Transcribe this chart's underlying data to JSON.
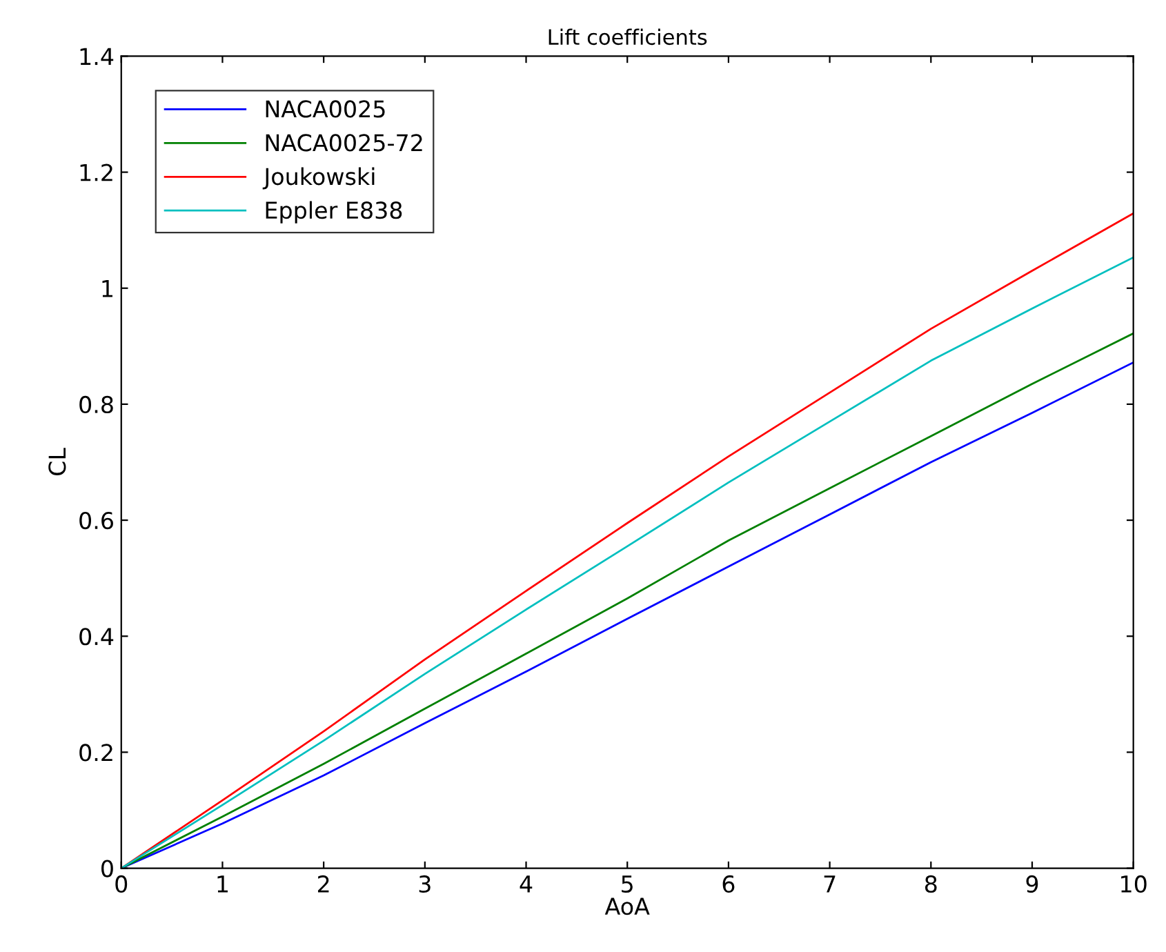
{
  "chart_data": {
    "type": "line",
    "title": "Lift coefficients",
    "xlabel": "AoA",
    "ylabel": "CL",
    "x": [
      0,
      1,
      2,
      3,
      4,
      5,
      6,
      7,
      8,
      9,
      10
    ],
    "series": [
      {
        "name": "NACA0025",
        "color": "#0000ff",
        "values": [
          0,
          0.077,
          0.16,
          0.25,
          0.339,
          0.43,
          0.52,
          0.61,
          0.7,
          0.785,
          0.872
        ]
      },
      {
        "name": "NACA0025-72",
        "color": "#008000",
        "values": [
          0,
          0.089,
          0.18,
          0.275,
          0.37,
          0.465,
          0.565,
          0.655,
          0.745,
          0.835,
          0.922
        ]
      },
      {
        "name": "Joukowski",
        "color": "#ff0000",
        "values": [
          0,
          0.117,
          0.236,
          0.36,
          0.478,
          0.595,
          0.71,
          0.82,
          0.93,
          1.03,
          1.129
        ]
      },
      {
        "name": "Eppler E838",
        "color": "#00bfbf",
        "values": [
          0,
          0.109,
          0.22,
          0.335,
          0.446,
          0.555,
          0.665,
          0.77,
          0.875,
          0.965,
          1.053
        ]
      }
    ],
    "xlim": [
      0,
      10
    ],
    "xticks": [
      0,
      1,
      2,
      3,
      4,
      5,
      6,
      7,
      8,
      9,
      10
    ],
    "ylim": [
      0,
      1.4
    ],
    "yticks": [
      0,
      0.2,
      0.4,
      0.6,
      0.8,
      1,
      1.2,
      1.4
    ],
    "grid": false,
    "legend": "top left",
    "marker": "none",
    "line_style": "solid"
  }
}
